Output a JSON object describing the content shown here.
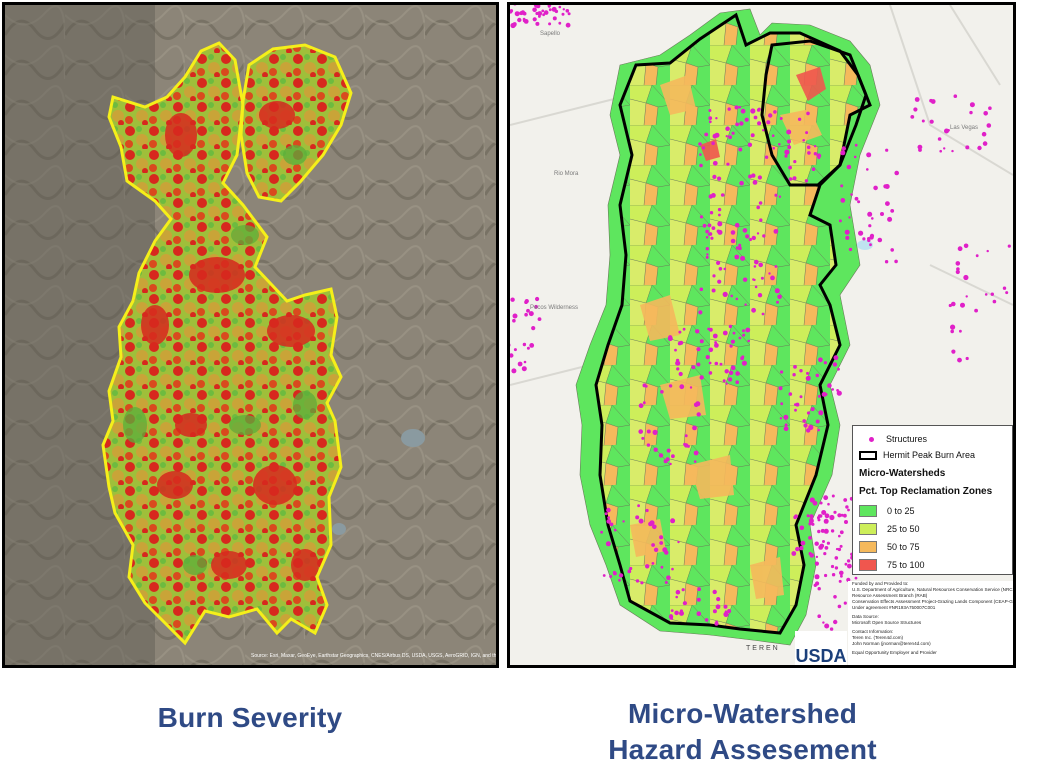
{
  "captions": {
    "left": "Burn Severity",
    "right_line1": "Micro-Watershed",
    "right_line2": "Hazard Assesement"
  },
  "left_map": {
    "attribution": "Source: Esri, Maxar, GeoEye, Earthstar Geographics, CNES/Airbus DS, USDA, USGS, AeroGRID, IGN, and the GIS User Community",
    "colors": {
      "terrain": "#8c8578",
      "boundary": "#f5ef1a",
      "high": "#d7281e",
      "moderate": "#c9a438",
      "low": "#7cc142"
    }
  },
  "right_map": {
    "place_labels": [
      "Sapello",
      "Pecos Wilderness",
      "Rio Mora",
      "Las Vegas"
    ],
    "legend": {
      "structures": "Structures",
      "burn_area": "Hermit Peak Burn Area",
      "title": "Micro-Watersheds",
      "subtitle": "Pct. Top Reclamation Zones",
      "classes": [
        {
          "label": "0 to 25",
          "color": "#5ee65e"
        },
        {
          "label": "25 to 50",
          "color": "#cdee5a"
        },
        {
          "label": "50 to 75",
          "color": "#f5b95c"
        },
        {
          "label": "75 to 100",
          "color": "#f0564e"
        }
      ]
    },
    "info": [
      "Funded by and Provided to:",
      "U.S. Department of Agriculture, Natural Resources Conservation Service (NRCS)",
      "Resource Assessment Branch (RAB)",
      "Conservation Effects Assessment Project-Grazing Lands Component (CEAP-GL)",
      "Under agreement #NR193A750007C001",
      "Data Source:",
      "Microsoft Open Source Structures",
      "Contact Information:",
      "Teren Inc. (Teren4d.com)",
      "John Norman (jnorman@teren4d.com)",
      "Equal Opportunity Employer and Provider"
    ],
    "logos": {
      "teren": "TEREN",
      "usda": "USDA"
    },
    "colors": {
      "background": "#f2f1ec",
      "boundary": "#000000",
      "structures": "#e020c8"
    }
  }
}
